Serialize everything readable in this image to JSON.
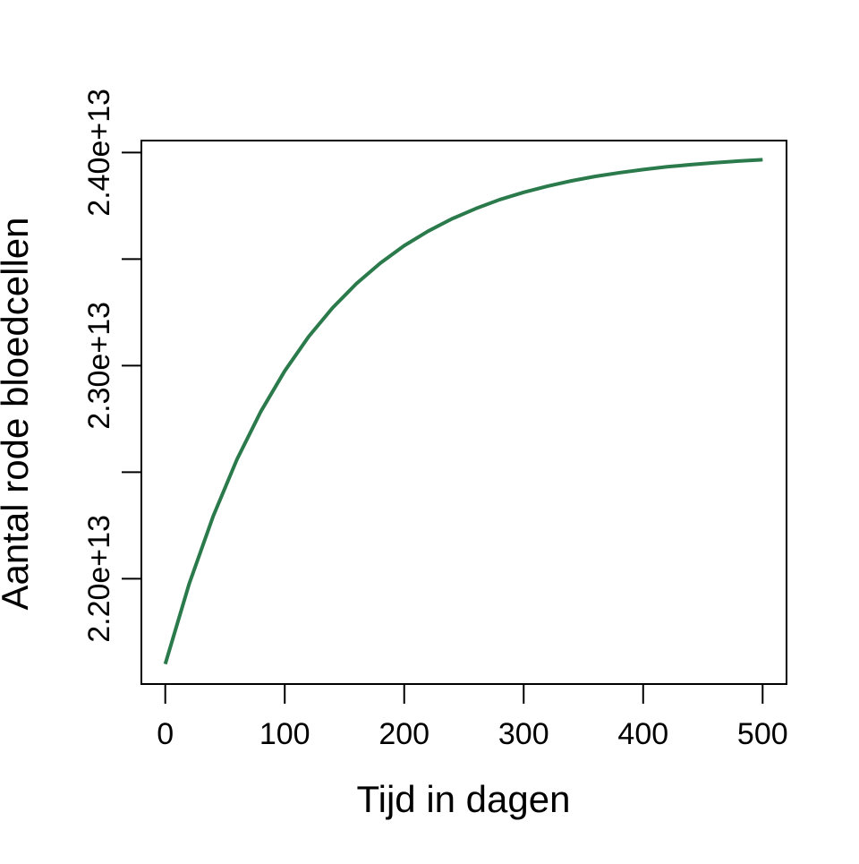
{
  "chart_data": {
    "type": "line",
    "xlabel": "Tijd in dagen",
    "ylabel": "Aantal rode bloedcellen",
    "x": [
      0,
      20,
      40,
      60,
      80,
      100,
      120,
      140,
      160,
      180,
      200,
      220,
      240,
      260,
      280,
      300,
      320,
      340,
      360,
      380,
      400,
      420,
      440,
      460,
      480,
      500
    ],
    "series": [
      {
        "color": "#2b7a4b",
        "values": [
          21600000000000.0,
          21976000000000.0,
          22292000000000.0,
          22560000000000.0,
          22785000000000.0,
          22975000000000.0,
          23136000000000.0,
          23271000000000.0,
          23385000000000.0,
          23481000000000.0,
          23563000000000.0,
          23631000000000.0,
          23689000000000.0,
          23737000000000.0,
          23779000000000.0,
          23813000000000.0,
          23842000000000.0,
          23867000000000.0,
          23888000000000.0,
          23905000000000.0,
          23920000000000.0,
          23933000000000.0,
          23943000000000.0,
          23952000000000.0,
          23960000000000.0,
          23966000000000.0
        ]
      }
    ],
    "xlim": [
      -20,
      520
    ],
    "xticks": [
      0,
      100,
      200,
      300,
      400,
      500
    ],
    "ylim": [
      21506000000000.0,
      24056000000000.0
    ],
    "yticks": [
      {
        "value": 22000000000000.0,
        "label": "2.20e+13"
      },
      {
        "value": 22500000000000.0,
        "label": null
      },
      {
        "value": 23000000000000.0,
        "label": "2.30e+13"
      },
      {
        "value": 23500000000000.0,
        "label": null
      },
      {
        "value": 24000000000000.0,
        "label": "2.40e+13"
      }
    ],
    "grid": false
  }
}
